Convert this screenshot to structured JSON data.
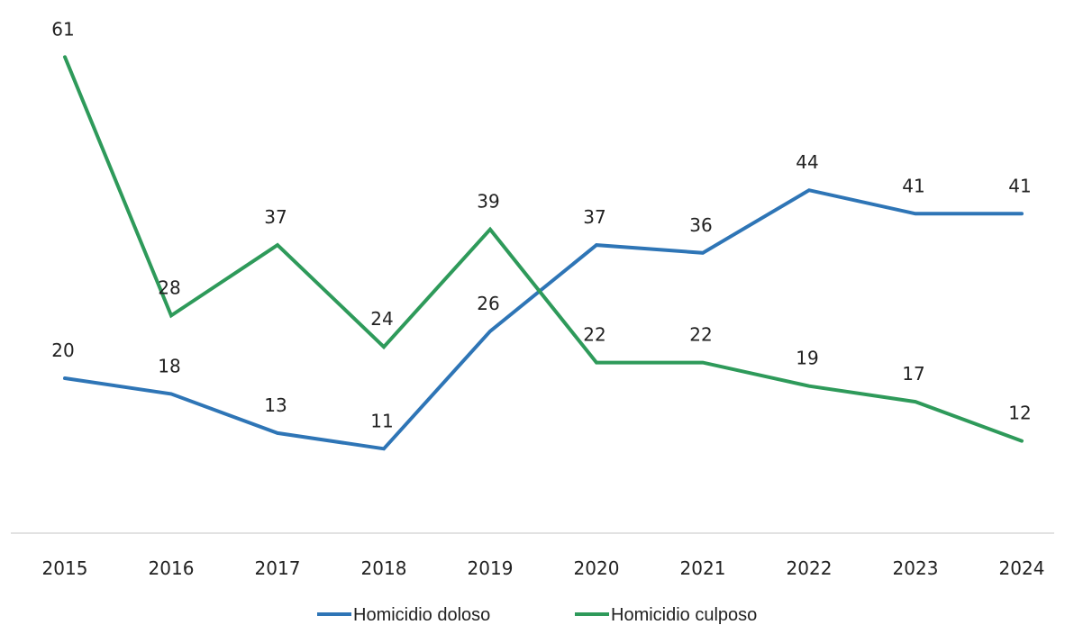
{
  "chart_data": {
    "type": "line",
    "categories": [
      "2015",
      "2016",
      "2017",
      "2018",
      "2019",
      "2020",
      "2021",
      "2022",
      "2023",
      "2024"
    ],
    "series": [
      {
        "name": "Homicidio doloso",
        "color": "#2e75b6",
        "values": [
          20,
          18,
          13,
          11,
          26,
          37,
          36,
          44,
          41,
          41
        ]
      },
      {
        "name": "Homicidio culposo",
        "color": "#2e9a5a",
        "values": [
          61,
          28,
          37,
          24,
          39,
          22,
          22,
          19,
          17,
          12
        ]
      }
    ],
    "ylim": [
      0,
      66
    ],
    "title": "",
    "xlabel": "",
    "ylabel": "",
    "grid": false,
    "data_labels": true,
    "legend_position": "bottom",
    "axis_color": "#d9d9d9"
  }
}
